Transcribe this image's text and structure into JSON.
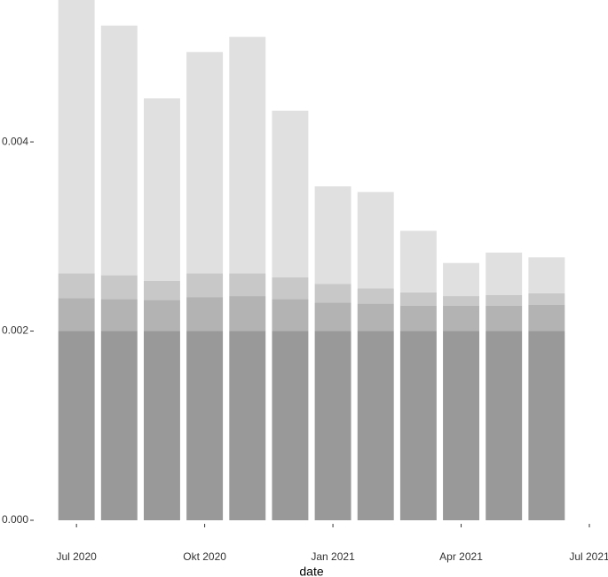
{
  "chart_data": {
    "type": "bar",
    "stacked": true,
    "x_label": "date",
    "x": [
      "2020-07",
      "2020-08",
      "2020-09",
      "2020-10",
      "2020-11",
      "2020-12",
      "2021-01",
      "2021-02",
      "2021-03",
      "2021-04",
      "2021-05",
      "2021-06"
    ],
    "series": [
      {
        "color": "#999999",
        "values": [
          0.002,
          0.002,
          0.002,
          0.002,
          0.002,
          0.002,
          0.002,
          0.002,
          0.002,
          0.002,
          0.002,
          0.002
        ]
      },
      {
        "color": "#b3b3b3",
        "values": [
          0.00035,
          0.00034,
          0.00033,
          0.00036,
          0.00037,
          0.00034,
          0.0003,
          0.00029,
          0.00027,
          0.00027,
          0.00027,
          0.00028
        ]
      },
      {
        "color": "#c8c8c8",
        "values": [
          0.00026,
          0.00025,
          0.0002,
          0.00025,
          0.00024,
          0.00023,
          0.0002,
          0.00016,
          0.00014,
          0.0001,
          0.00011,
          0.00012
        ]
      },
      {
        "color": "#e0e0e0",
        "values": [
          0.00289,
          0.00264,
          0.00193,
          0.00234,
          0.0025,
          0.00176,
          0.00103,
          0.00102,
          0.00065,
          0.00035,
          0.00045,
          0.00038
        ]
      }
    ],
    "xlim": [
      "2020-06",
      "2021-07"
    ],
    "xticks": [
      {
        "value": "2020-07",
        "label": "Jul 2020"
      },
      {
        "value": "2020-10",
        "label": "Okt 2020"
      },
      {
        "value": "2021-01",
        "label": "Jan 2021"
      },
      {
        "value": "2021-04",
        "label": "Apr 2021"
      },
      {
        "value": "2021-07",
        "label": "Jul 2021"
      }
    ],
    "ylim": [
      0,
      0.0055
    ],
    "yticks": [
      {
        "value": 0,
        "label": "0.000"
      },
      {
        "value": 0.002,
        "label": "0.002"
      },
      {
        "value": 0.004,
        "label": "0.004"
      }
    ],
    "grid": false
  }
}
